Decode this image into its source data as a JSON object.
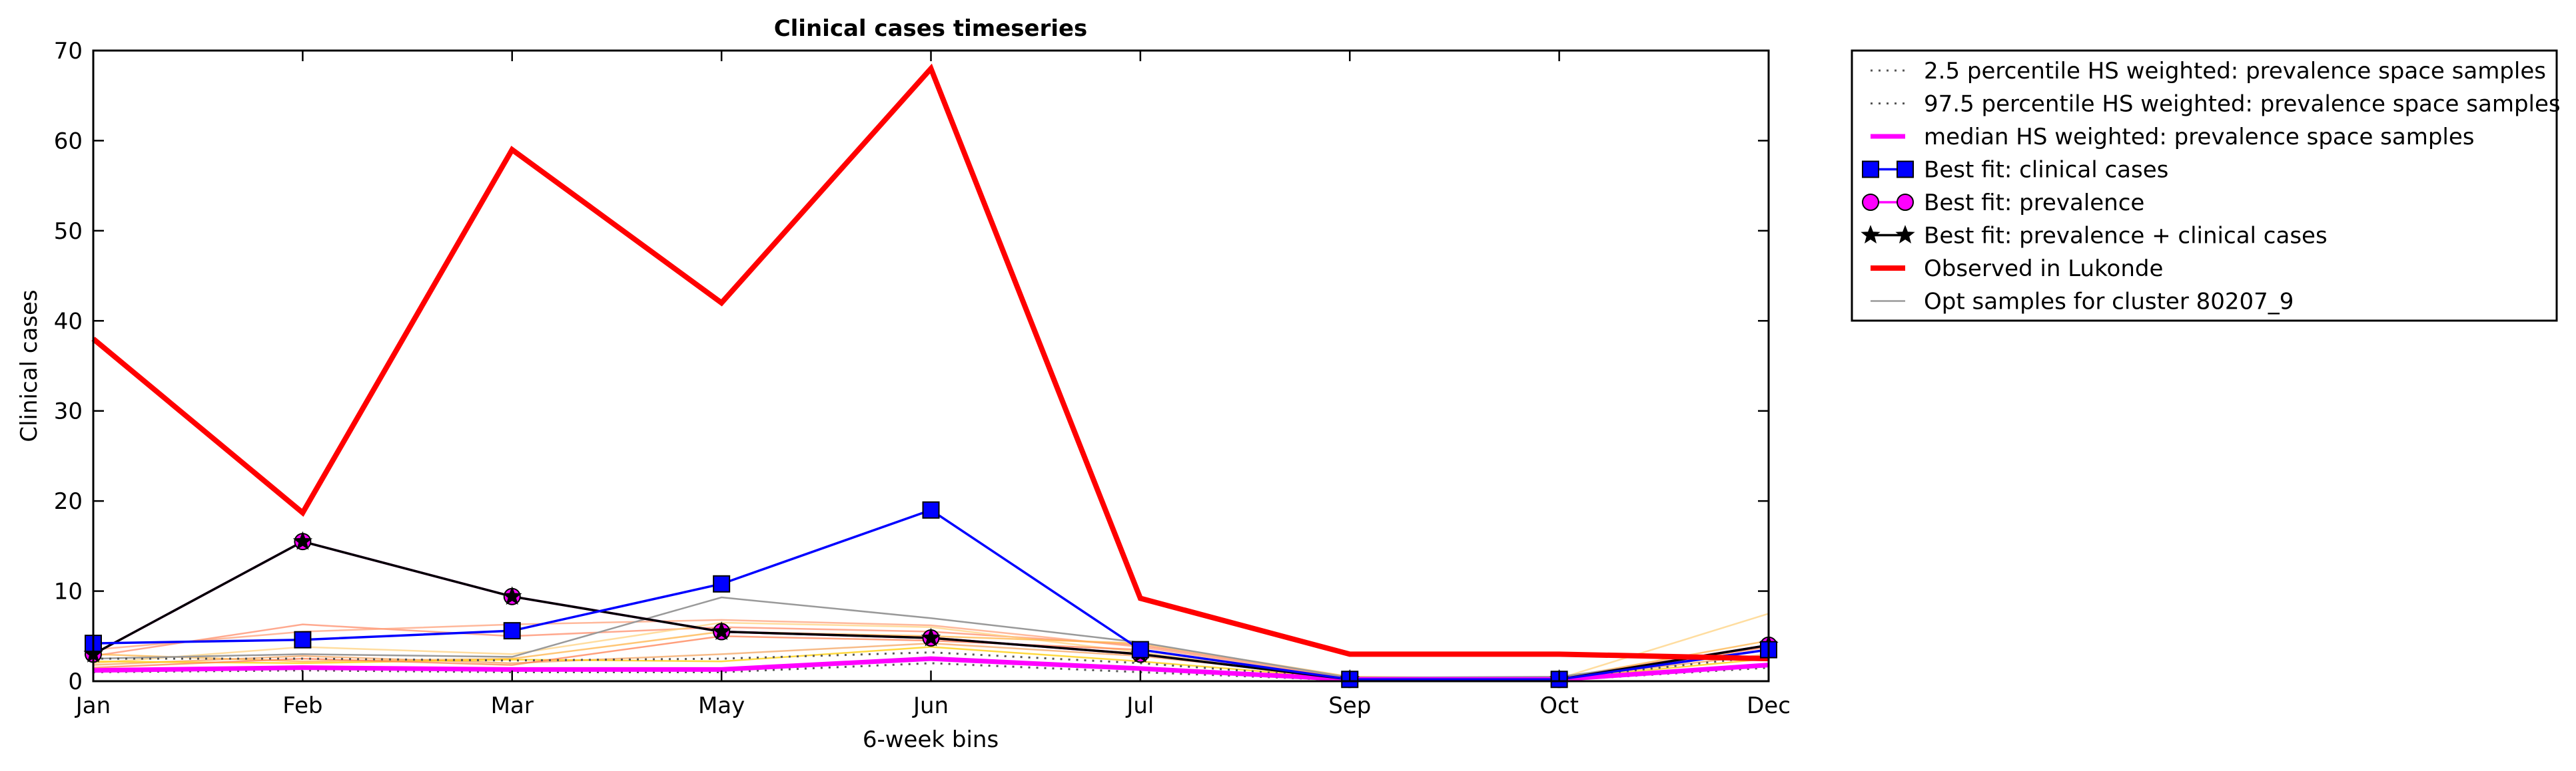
{
  "chart_data": {
    "type": "line",
    "title": "Clinical cases timeseries",
    "xlabel": "6-week bins",
    "ylabel": "Clinical cases",
    "categories": [
      "Jan",
      "Feb",
      "Mar",
      "May",
      "Jun",
      "Jul",
      "Sep",
      "Oct",
      "Dec"
    ],
    "ylim": [
      0,
      70
    ],
    "yticks": [
      "0",
      "10",
      "20",
      "30",
      "40",
      "50",
      "60",
      "70"
    ],
    "grid": false,
    "legend_position": "outside-top-right",
    "series": [
      {
        "name": "2.5 percentile HS weighted: prevalence space samples",
        "style": "dotted",
        "color": "#555555",
        "values": [
          1.0,
          1.2,
          1.0,
          1.0,
          2.0,
          1.0,
          0.1,
          0.1,
          1.5
        ]
      },
      {
        "name": "97.5 percentile HS weighted: prevalence space samples",
        "style": "dotted",
        "color": "#555555",
        "values": [
          2.5,
          2.5,
          2.3,
          2.5,
          3.2,
          2.0,
          0.3,
          0.3,
          2.8
        ]
      },
      {
        "name": "median HS weighted: prevalence space samples",
        "style": "solid",
        "color": "#ff00ff",
        "values": [
          1.2,
          1.5,
          1.3,
          1.3,
          2.5,
          1.4,
          0.2,
          0.2,
          1.8
        ]
      },
      {
        "name": "Best fit: clinical cases",
        "style": "solid",
        "marker": "square",
        "color": "#0000ff",
        "values": [
          4.2,
          4.6,
          5.6,
          10.8,
          19.0,
          3.5,
          0.2,
          0.2,
          3.5
        ]
      },
      {
        "name": "Best fit: prevalence",
        "style": "solid",
        "marker": "circle",
        "color": "#ff00ff",
        "values": [
          3.0,
          15.5,
          9.4,
          5.5,
          4.8,
          3.0,
          0.2,
          0.2,
          4.0
        ]
      },
      {
        "name": "Best fit: prevalence + clinical cases",
        "style": "solid",
        "marker": "star",
        "color": "#000000",
        "values": [
          3.0,
          15.5,
          9.4,
          5.5,
          4.8,
          3.0,
          0.2,
          0.2,
          4.0
        ]
      },
      {
        "name": "Observed in Lukonde",
        "style": "solid",
        "color": "#ff0000",
        "values": [
          38.0,
          18.7,
          59.0,
          42.0,
          68.0,
          9.2,
          3.0,
          3.0,
          2.5
        ]
      },
      {
        "name": "Opt samples for cluster 80207_9",
        "style": "solid",
        "color": "#999999",
        "values": [
          2.5,
          3.0,
          2.7,
          9.3,
          7.0,
          4.3,
          0.4,
          0.5,
          3.5
        ]
      }
    ],
    "extra_samples": [
      {
        "color": "#ff8c69",
        "values": [
          2.8,
          6.3,
          5.0,
          6.0,
          5.5,
          4.0,
          0.4,
          0.4,
          4.0
        ]
      },
      {
        "color": "#ffa07a",
        "values": [
          3.5,
          5.5,
          6.3,
          6.8,
          6.2,
          3.8,
          0.3,
          0.4,
          3.5
        ]
      },
      {
        "color": "#ffd27f",
        "values": [
          2.0,
          3.8,
          3.0,
          6.5,
          6.0,
          3.2,
          0.3,
          0.3,
          7.5
        ]
      },
      {
        "color": "#ffb347",
        "values": [
          3.0,
          2.2,
          2.5,
          5.5,
          5.0,
          4.2,
          0.5,
          0.3,
          4.5
        ]
      },
      {
        "color": "#f4a460",
        "values": [
          1.8,
          2.8,
          2.0,
          3.0,
          4.2,
          2.8,
          0.4,
          0.3,
          3.0
        ]
      },
      {
        "color": "#ffcc00",
        "values": [
          2.2,
          2.0,
          2.4,
          2.2,
          3.8,
          2.2,
          0.3,
          0.3,
          2.5
        ]
      },
      {
        "color": "#ff7f50",
        "values": [
          1.5,
          2.5,
          1.8,
          5.0,
          4.5,
          3.5,
          0.3,
          0.3,
          3.8
        ]
      }
    ]
  }
}
